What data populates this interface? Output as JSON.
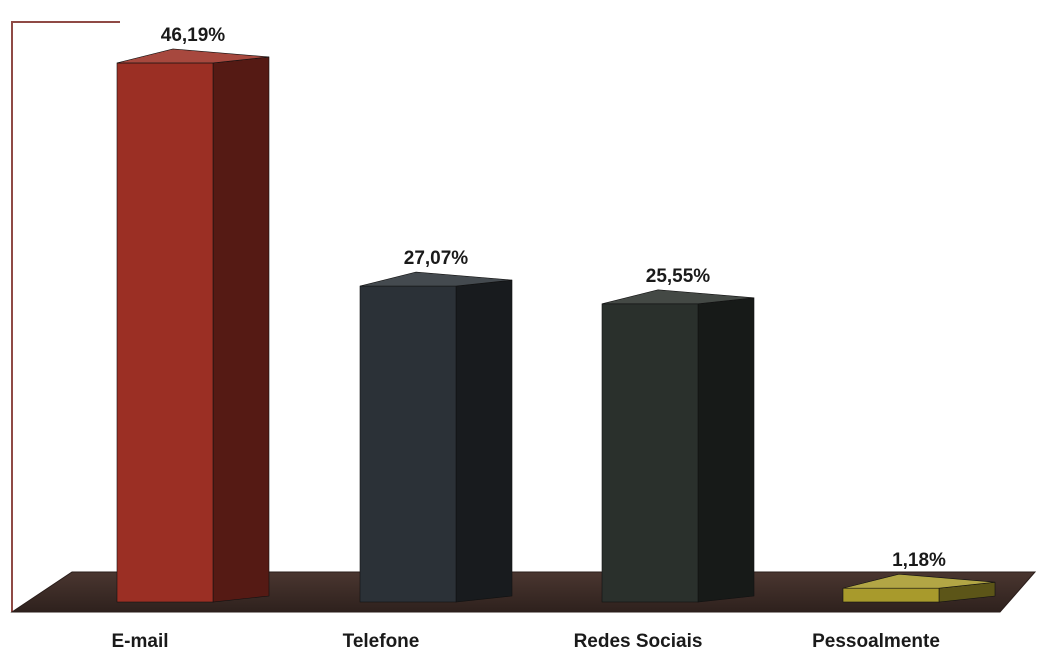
{
  "chart_data": {
    "type": "bar",
    "style": "3d-column",
    "categories": [
      "E-mail",
      "Telefone",
      "Redes Sociais",
      "Pessoalmente"
    ],
    "values": [
      46.19,
      27.07,
      25.55,
      1.18
    ],
    "value_labels": [
      "46,19%",
      "27,07%",
      "25,55%",
      "1,18%"
    ],
    "ylim": [
      0,
      50
    ],
    "grid": false,
    "legend": "none",
    "colors": {
      "bars": [
        "#9b2f24",
        "#2b3137",
        "#2a302c",
        "#a89a2c"
      ],
      "floor": "#3b2a25",
      "wall_border": "#8f4a45"
    }
  }
}
